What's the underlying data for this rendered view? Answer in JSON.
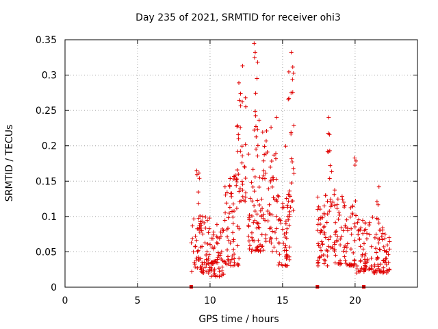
{
  "chart_data": {
    "type": "scatter",
    "title": "Day 235 of 2021, SRMTID for receiver ohi3",
    "xlabel": "GPS time / hours",
    "ylabel": "SRMTID / TECUs",
    "xlim": [
      0,
      24.3
    ],
    "ylim": [
      0,
      0.35
    ],
    "x_ticks": [
      0,
      5,
      10,
      15,
      20
    ],
    "x_tick_labels": [
      "0",
      "5",
      "10",
      "15",
      "20"
    ],
    "y_ticks": [
      0,
      0.05,
      0.1,
      0.15,
      0.2,
      0.25,
      0.3,
      0.35
    ],
    "y_tick_labels": [
      "0",
      "0.05",
      "0.1",
      "0.15",
      "0.2",
      "0.25",
      "0.3",
      "0.35"
    ],
    "grid": true,
    "marker": "plus",
    "marker_color": "#e00000",
    "gap_markers_x": [
      8.7,
      17.4,
      20.6
    ],
    "clusters": [
      {
        "x_range": [
          8.7,
          10.0
        ],
        "y_range": [
          0.02,
          0.1
        ],
        "n": 70
      },
      {
        "x_range": [
          9.0,
          9.4
        ],
        "y_range": [
          0.08,
          0.185
        ],
        "n": 12
      },
      {
        "x_range": [
          10.0,
          11.0
        ],
        "y_range": [
          0.015,
          0.09
        ],
        "n": 60
      },
      {
        "x_range": [
          11.0,
          12.0
        ],
        "y_range": [
          0.03,
          0.16
        ],
        "n": 60
      },
      {
        "x_range": [
          11.8,
          12.6
        ],
        "y_range": [
          0.12,
          0.32
        ],
        "n": 40
      },
      {
        "x_range": [
          12.6,
          13.6
        ],
        "y_range": [
          0.05,
          0.2
        ],
        "n": 60
      },
      {
        "x_range": [
          13.0,
          13.4
        ],
        "y_range": [
          0.2,
          0.345
        ],
        "n": 14
      },
      {
        "x_range": [
          13.6,
          14.6
        ],
        "y_range": [
          0.05,
          0.25
        ],
        "n": 60
      },
      {
        "x_range": [
          14.6,
          15.5
        ],
        "y_range": [
          0.03,
          0.14
        ],
        "n": 50
      },
      {
        "x_range": [
          15.2,
          15.8
        ],
        "y_range": [
          0.1,
          0.335
        ],
        "n": 30
      },
      {
        "x_range": [
          17.4,
          18.1
        ],
        "y_range": [
          0.03,
          0.13
        ],
        "n": 50
      },
      {
        "x_range": [
          18.1,
          18.6
        ],
        "y_range": [
          0.05,
          0.25
        ],
        "n": 30
      },
      {
        "x_range": [
          18.6,
          20.0
        ],
        "y_range": [
          0.03,
          0.13
        ],
        "n": 70
      },
      {
        "x_range": [
          19.8,
          20.1
        ],
        "y_range": [
          0.1,
          0.19
        ],
        "n": 8
      },
      {
        "x_range": [
          20.1,
          21.4
        ],
        "y_range": [
          0.02,
          0.1
        ],
        "n": 70
      },
      {
        "x_range": [
          21.4,
          22.4
        ],
        "y_range": [
          0.02,
          0.09
        ],
        "n": 60
      },
      {
        "x_range": [
          21.5,
          21.8
        ],
        "y_range": [
          0.09,
          0.145
        ],
        "n": 6
      }
    ]
  }
}
